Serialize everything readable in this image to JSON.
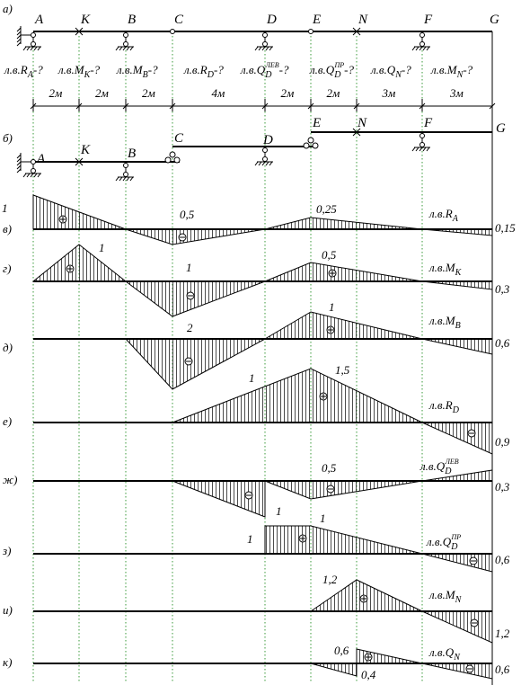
{
  "diagram_a": {
    "label": "а)",
    "points": [
      "A",
      "K",
      "B",
      "C",
      "D",
      "E",
      "N",
      "F",
      "G"
    ],
    "questions": [
      {
        "main": "л.в.R",
        "sub": "A",
        "suffix": "-?"
      },
      {
        "main": "л.в.M",
        "sub": "K",
        "suffix": "-?"
      },
      {
        "main": "л.в.M",
        "sub": "B",
        "suffix": "-?"
      },
      {
        "main": "л.в.R",
        "sub": "D",
        "suffix": "-?"
      },
      {
        "main": "л.в.Q",
        "sub": "D",
        "sup": "ЛЕВ",
        "suffix": "-?"
      },
      {
        "main": "л.в.Q",
        "sub": "D",
        "sup": "ПР",
        "suffix": "-?"
      },
      {
        "main": "л.в.Q",
        "sub": "N",
        "suffix": "-?"
      },
      {
        "main": "л.в.M",
        "sub": "N",
        "suffix": "-?"
      }
    ],
    "spans": [
      "2м",
      "2м",
      "2м",
      "4м",
      "2м",
      "2м",
      "3м",
      "3м"
    ]
  },
  "diagram_b": {
    "label": "б)",
    "points": [
      "A",
      "K",
      "B",
      "C",
      "D",
      "E",
      "N",
      "F",
      "G"
    ]
  },
  "lines": [
    {
      "label": "в)",
      "name": {
        "main": "л.в.R",
        "sub": "A"
      },
      "values": [
        "1",
        "0,5",
        "0,25",
        "0,15"
      ]
    },
    {
      "label": "г)",
      "name": {
        "main": "л.в.M",
        "sub": "K"
      },
      "values": [
        "1",
        "1",
        "0,5",
        "0,3"
      ]
    },
    {
      "label": "д)",
      "name": {
        "main": "л.в.M",
        "sub": "B"
      },
      "values": [
        "2",
        "1",
        "0,6"
      ]
    },
    {
      "label": "е)",
      "name": {
        "main": "л.в.R",
        "sub": "D"
      },
      "values": [
        "1",
        "1,5",
        "0,9"
      ]
    },
    {
      "label": "ж)",
      "name": {
        "main": "л.в.Q",
        "sub": "D",
        "sup": "ЛЕВ"
      },
      "values": [
        "1",
        "0,5",
        "0,3"
      ]
    },
    {
      "label": "з)",
      "name": {
        "main": "л.в.Q",
        "sub": "D",
        "sup": "ПР"
      },
      "values": [
        "1",
        "1",
        "0,6"
      ]
    },
    {
      "label": "и)",
      "name": {
        "main": "л.в.M",
        "sub": "N"
      },
      "values": [
        "1,2",
        "1,2"
      ]
    },
    {
      "label": "к)",
      "name": {
        "main": "л.в.Q",
        "sub": "N"
      },
      "values": [
        "0,6",
        "0,4",
        "0,6"
      ]
    }
  ]
}
